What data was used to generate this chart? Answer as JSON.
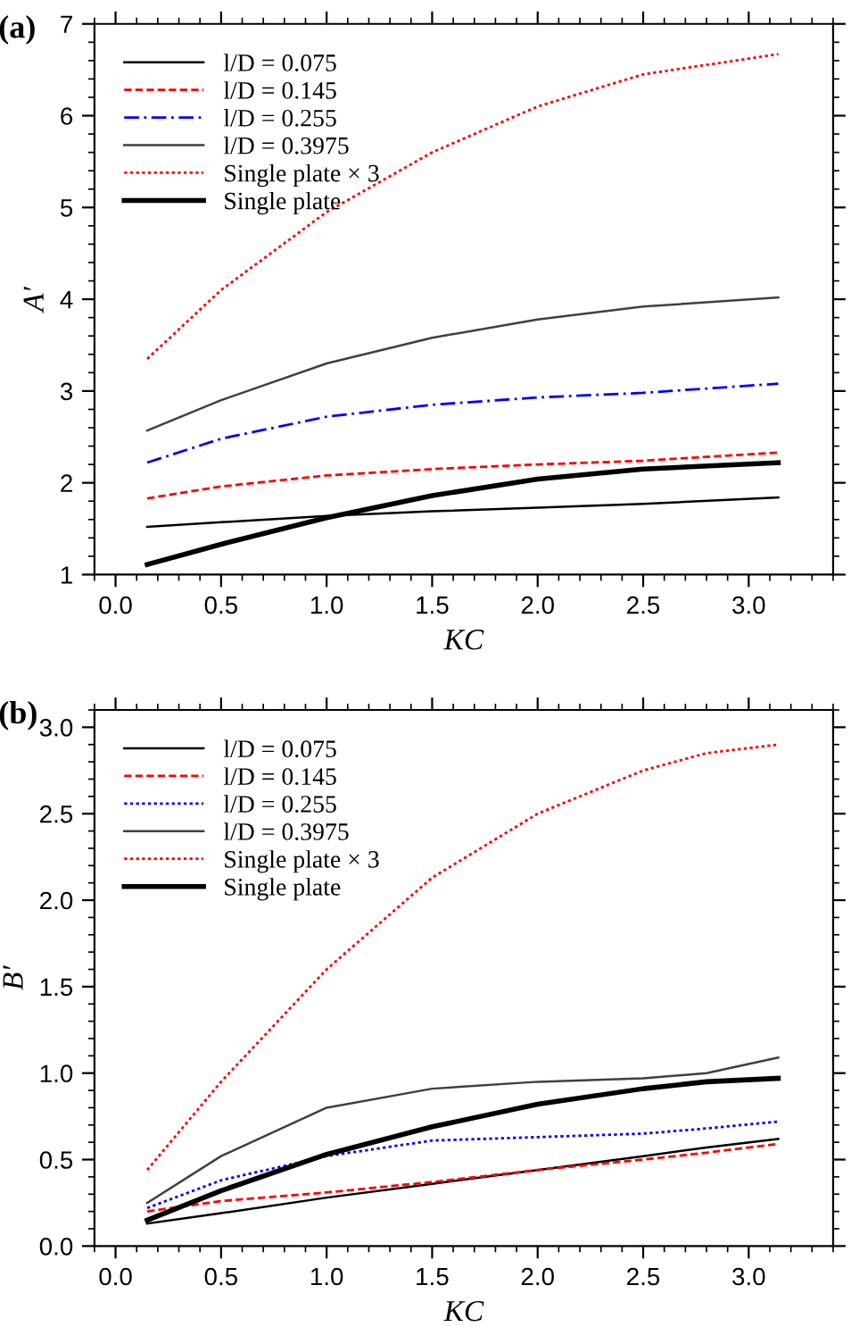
{
  "chart_data": [
    {
      "type": "line",
      "title": "(a)",
      "xlabel": "KC",
      "ylabel": "A′",
      "x": [
        0.15,
        0.5,
        1.0,
        1.5,
        2.0,
        2.5,
        3.14
      ],
      "xlim": [
        -0.1,
        3.4
      ],
      "xticks": [
        {
          "value": 0.0,
          "label": "0.0"
        },
        {
          "value": 0.5,
          "label": "0.5"
        },
        {
          "value": 1.0,
          "label": "1.0"
        },
        {
          "value": 1.5,
          "label": "1.5"
        },
        {
          "value": 2.0,
          "label": "2.0"
        },
        {
          "value": 2.5,
          "label": "2.5"
        },
        {
          "value": 3.0,
          "label": "3.0"
        }
      ],
      "ylim": [
        1,
        7
      ],
      "yticks": [
        1,
        2,
        3,
        4,
        5,
        6,
        7
      ],
      "legend": "top left",
      "grid": false,
      "series": [
        {
          "name": "l/D = 0.075",
          "color": "#000000",
          "line_style": "solid",
          "values": [
            1.52,
            1.57,
            1.64,
            1.69,
            1.73,
            1.77,
            1.84
          ]
        },
        {
          "name": "l/D = 0.145",
          "color": "#ff0000",
          "line_style": "dashed",
          "values": [
            1.83,
            1.96,
            2.08,
            2.15,
            2.2,
            2.24,
            2.33
          ]
        },
        {
          "name": "l/D = 0.255",
          "color": "#0000ff",
          "line_style": "dashdot",
          "values": [
            2.22,
            2.48,
            2.72,
            2.85,
            2.93,
            2.98,
            3.08
          ]
        },
        {
          "name": "l/D = 0.3975",
          "color": "#404040",
          "line_style": "solid",
          "values": [
            2.57,
            2.9,
            3.3,
            3.58,
            3.78,
            3.92,
            4.02
          ]
        },
        {
          "name": "Single plate × 3",
          "color": "#ff0000",
          "line_style": "dotted",
          "values": [
            3.35,
            4.1,
            4.95,
            5.6,
            6.1,
            6.45,
            6.67
          ]
        },
        {
          "name": "Single plate",
          "color": "#000000",
          "line_style": "solid",
          "values": [
            1.11,
            1.33,
            1.62,
            1.86,
            2.04,
            2.15,
            2.22
          ]
        }
      ]
    },
    {
      "type": "line",
      "title": "(b)",
      "xlabel": "KC",
      "ylabel": "B′",
      "x": [
        0.15,
        0.5,
        1.0,
        1.5,
        2.0,
        2.5,
        2.8,
        3.14
      ],
      "xlim": [
        -0.1,
        3.4
      ],
      "xticks": [
        {
          "value": 0.0,
          "label": "0.0"
        },
        {
          "value": 0.5,
          "label": "0.5"
        },
        {
          "value": 1.0,
          "label": "1.0"
        },
        {
          "value": 1.5,
          "label": "1.5"
        },
        {
          "value": 2.0,
          "label": "2.0"
        },
        {
          "value": 2.5,
          "label": "2.5"
        },
        {
          "value": 3.0,
          "label": "3.0"
        }
      ],
      "ylim": [
        0,
        3.1
      ],
      "yticks": [
        {
          "value": 0.0,
          "label": "0.0"
        },
        {
          "value": 0.5,
          "label": "0.5"
        },
        {
          "value": 1.0,
          "label": "1.0"
        },
        {
          "value": 1.5,
          "label": "1.5"
        },
        {
          "value": 2.0,
          "label": "2.0"
        },
        {
          "value": 2.5,
          "label": "2.5"
        },
        {
          "value": 3.0,
          "label": "3.0"
        }
      ],
      "legend": "top left",
      "grid": false,
      "series": [
        {
          "name": "l/D = 0.075",
          "color": "#000000",
          "line_style": "solid",
          "values": [
            0.13,
            0.19,
            0.28,
            0.36,
            0.44,
            0.52,
            0.57,
            0.62
          ]
        },
        {
          "name": "l/D = 0.145",
          "color": "#ff0000",
          "line_style": "dashed",
          "values": [
            0.2,
            0.26,
            0.31,
            0.37,
            0.44,
            0.5,
            0.54,
            0.59
          ]
        },
        {
          "name": "l/D = 0.255",
          "color": "#0000ff",
          "line_style": "dotted",
          "values": [
            0.22,
            0.38,
            0.52,
            0.61,
            0.63,
            0.65,
            0.68,
            0.72
          ]
        },
        {
          "name": "l/D = 0.3975",
          "color": "#404040",
          "line_style": "solid",
          "values": [
            0.25,
            0.52,
            0.8,
            0.91,
            0.95,
            0.97,
            1.0,
            1.09
          ]
        },
        {
          "name": "Single plate × 3",
          "color": "#ff0000",
          "line_style": "dotted",
          "values": [
            0.44,
            0.95,
            1.6,
            2.13,
            2.5,
            2.75,
            2.85,
            2.9
          ]
        },
        {
          "name": "Single plate",
          "color": "#000000",
          "line_style": "solid",
          "values": [
            0.15,
            0.32,
            0.53,
            0.69,
            0.82,
            0.91,
            0.95,
            0.97
          ]
        }
      ]
    }
  ]
}
